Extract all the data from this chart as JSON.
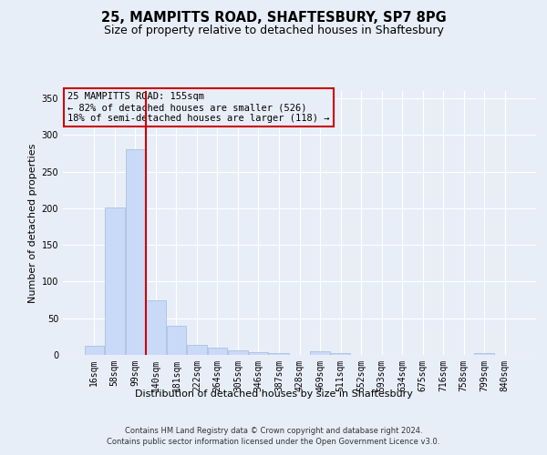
{
  "title1": "25, MAMPITTS ROAD, SHAFTESBURY, SP7 8PG",
  "title2": "Size of property relative to detached houses in Shaftesbury",
  "xlabel": "Distribution of detached houses by size in Shaftesbury",
  "ylabel": "Number of detached properties",
  "categories": [
    "16sqm",
    "58sqm",
    "99sqm",
    "140sqm",
    "181sqm",
    "222sqm",
    "264sqm",
    "305sqm",
    "346sqm",
    "387sqm",
    "428sqm",
    "469sqm",
    "511sqm",
    "552sqm",
    "593sqm",
    "634sqm",
    "675sqm",
    "716sqm",
    "758sqm",
    "799sqm",
    "840sqm"
  ],
  "values": [
    13,
    201,
    281,
    74,
    40,
    14,
    10,
    6,
    4,
    2,
    0,
    5,
    2,
    0,
    0,
    0,
    0,
    0,
    0,
    2,
    0
  ],
  "bar_color": "#c9daf8",
  "bar_edge_color": "#a4b8d8",
  "vline_x": 2.5,
  "vline_color": "#cc0000",
  "annotation_line1": "25 MAMPITTS ROAD: 155sqm",
  "annotation_line2": "← 82% of detached houses are smaller (526)",
  "annotation_line3": "18% of semi-detached houses are larger (118) →",
  "annotation_box_edgecolor": "#cc0000",
  "ylim": [
    0,
    360
  ],
  "yticks": [
    0,
    50,
    100,
    150,
    200,
    250,
    300,
    350
  ],
  "footer1": "Contains HM Land Registry data © Crown copyright and database right 2024.",
  "footer2": "Contains public sector information licensed under the Open Government Licence v3.0.",
  "bg_color": "#e8eef8",
  "grid_color": "#ffffff",
  "title_fontsize": 10.5,
  "subtitle_fontsize": 9,
  "axis_label_fontsize": 8,
  "tick_fontsize": 7,
  "annotation_fontsize": 7.5,
  "footer_fontsize": 6
}
